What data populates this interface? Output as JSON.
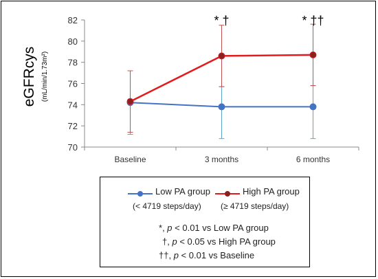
{
  "chart_data": {
    "type": "line",
    "categories": [
      "Baseline",
      "3 months",
      "6 months"
    ],
    "ylabel": "eGFRcys",
    "ylabel_unit": "(mL/min/1.73m²)",
    "ylim": [
      70,
      82
    ],
    "yticks": [
      70,
      72,
      74,
      76,
      78,
      80,
      82
    ],
    "grid": false,
    "series": [
      {
        "name": "Low PA group",
        "sublabel": "(< 4719 steps/day)",
        "color": "#4472c4",
        "error_color": "#5ba3c9",
        "values": [
          74.2,
          73.8,
          73.8
        ],
        "error_low": [
          71.2,
          70.8,
          70.8
        ],
        "error_high": [
          77.2,
          75.7,
          75.8
        ]
      },
      {
        "name": "High PA group",
        "sublabel": "(≥ 4719 steps/day)",
        "color": "#e31a1c",
        "marker_color": "#8b2020",
        "error_color": "#c0504d",
        "values": [
          74.3,
          78.6,
          78.7
        ],
        "error_low": [
          71.4,
          75.7,
          75.8
        ],
        "error_high": [
          77.2,
          81.5,
          81.6
        ]
      }
    ],
    "annotations": [
      "",
      "* †",
      "* ††"
    ]
  },
  "notes": [
    {
      "symbol": "*",
      "text": ", p < 0.01 vs Low PA group"
    },
    {
      "symbol": "†",
      "text": ", p < 0.05 vs High PA group"
    },
    {
      "symbol": "††",
      "text": ", p < 0.01 vs Baseline"
    }
  ]
}
